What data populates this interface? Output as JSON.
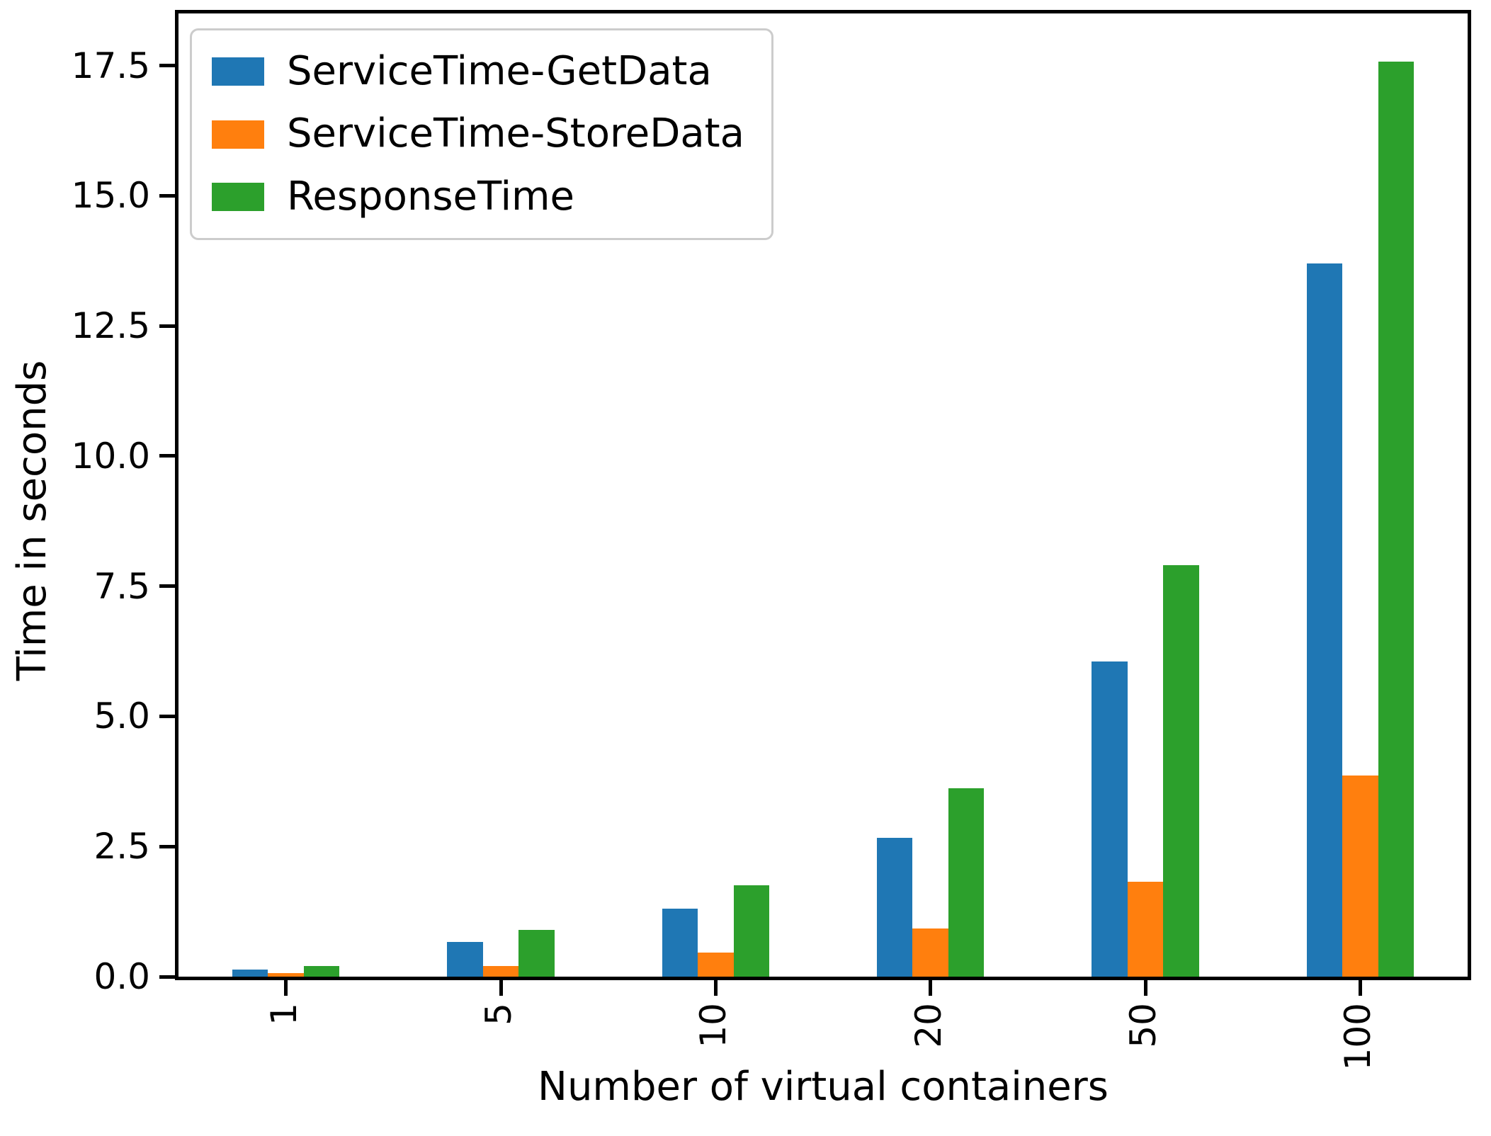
{
  "chart_data": {
    "type": "bar",
    "title": "",
    "xlabel": "Number of virtual containers",
    "ylabel": "Time in seconds",
    "categories": [
      "1",
      "5",
      "10",
      "20",
      "50",
      "100"
    ],
    "series": [
      {
        "name": "ServiceTime-GetData",
        "color": "#1f77b4",
        "values": [
          0.13,
          0.67,
          1.3,
          2.67,
          6.05,
          13.7
        ]
      },
      {
        "name": "ServiceTime-StoreData",
        "color": "#ff7f0e",
        "values": [
          0.07,
          0.2,
          0.46,
          0.93,
          1.82,
          3.87
        ]
      },
      {
        "name": "ResponseTime",
        "color": "#2ca02c",
        "values": [
          0.2,
          0.9,
          1.76,
          3.62,
          7.9,
          17.57
        ]
      }
    ],
    "ylim": [
      0,
      18.5
    ],
    "yticks": [
      0.0,
      2.5,
      5.0,
      7.5,
      10.0,
      12.5,
      15.0,
      17.5
    ],
    "ytick_labels": [
      "0.0",
      "2.5",
      "5.0",
      "7.5",
      "10.0",
      "12.5",
      "15.0",
      "17.5"
    ],
    "grid": false,
    "legend_position": "upper left",
    "xtick_rotation": 90,
    "bar_group_width_fraction": 0.5,
    "axis_color": "#000000",
    "background_color": "#ffffff"
  }
}
